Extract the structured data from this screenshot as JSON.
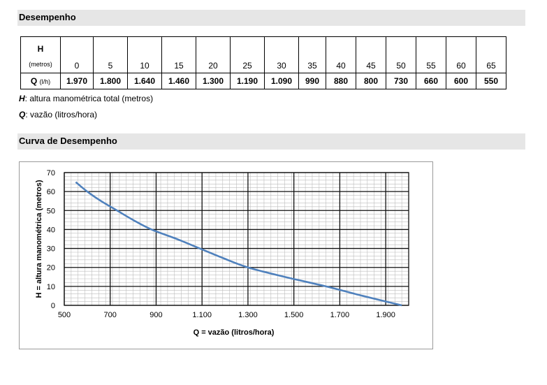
{
  "sections": {
    "performance_title": "Desempenho",
    "curve_title": "Curva de Desempenho"
  },
  "table": {
    "h_label": "H",
    "h_unit": "(metros)",
    "q_label": "Q",
    "q_unit": "(l/h)",
    "h_values": [
      "0",
      "5",
      "10",
      "15",
      "20",
      "25",
      "30",
      "35",
      "40",
      "45",
      "50",
      "55",
      "60",
      "65"
    ],
    "q_values": [
      "1.970",
      "1.800",
      "1.640",
      "1.460",
      "1.300",
      "1.190",
      "1.090",
      "990",
      "880",
      "800",
      "730",
      "660",
      "600",
      "550"
    ]
  },
  "notes": {
    "h_symbol": "H",
    "h_text": ": altura manométrica total (metros)",
    "q_symbol": "Q",
    "q_text": ": vazão (litros/hora)"
  },
  "chart_data": {
    "type": "line",
    "title": "",
    "xlabel": "Q = vazão  (litros/hora)",
    "ylabel": "H = altura manométrica (metros)",
    "xlim": [
      500,
      2000
    ],
    "ylim": [
      0,
      70
    ],
    "x_ticks": [
      "500",
      "700",
      "900",
      "1.100",
      "1.300",
      "1.500",
      "1.700",
      "1.900"
    ],
    "x_tick_values": [
      500,
      700,
      900,
      1100,
      1300,
      1500,
      1700,
      1900
    ],
    "y_ticks": [
      "0",
      "10",
      "20",
      "30",
      "40",
      "50",
      "60",
      "70"
    ],
    "y_tick_values": [
      0,
      10,
      20,
      30,
      40,
      50,
      60,
      70
    ],
    "grid": true,
    "legend": "none",
    "series": [
      {
        "color": "#4f81bd",
        "x": [
          1970,
          1800,
          1640,
          1460,
          1300,
          1190,
          1090,
          990,
          880,
          800,
          730,
          660,
          600,
          550
        ],
        "y": [
          0,
          5,
          10,
          15,
          20,
          25,
          30,
          35,
          40,
          45,
          50,
          55,
          60,
          65
        ]
      }
    ]
  }
}
